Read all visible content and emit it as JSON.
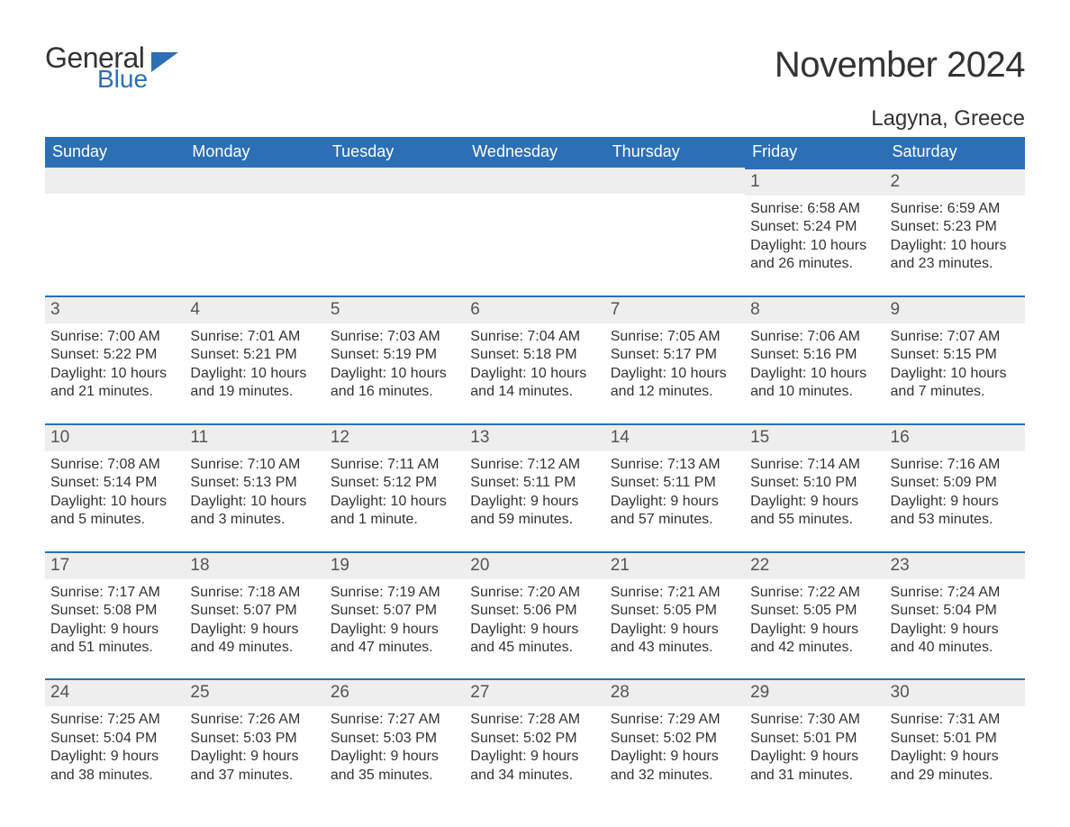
{
  "brand": {
    "word1": "General",
    "word2": "Blue",
    "icon_color": "#2c6fb5"
  },
  "title": "November 2024",
  "location": "Lagyna, Greece",
  "colors": {
    "header_bg": "#2c6fb5",
    "header_text": "#ffffff",
    "band_bg": "#eeeeee",
    "band_border": "#2c6fb5",
    "text": "#333333"
  },
  "fonts": {
    "title_pt": 40,
    "location_pt": 24,
    "dayhead_pt": 18,
    "daynum_pt": 19,
    "body_pt": 16
  },
  "day_names": [
    "Sunday",
    "Monday",
    "Tuesday",
    "Wednesday",
    "Thursday",
    "Friday",
    "Saturday"
  ],
  "weeks": [
    [
      null,
      null,
      null,
      null,
      null,
      {
        "n": "1",
        "sunrise": "Sunrise: 6:58 AM",
        "sunset": "Sunset: 5:24 PM",
        "d1": "Daylight: 10 hours",
        "d2": "and 26 minutes."
      },
      {
        "n": "2",
        "sunrise": "Sunrise: 6:59 AM",
        "sunset": "Sunset: 5:23 PM",
        "d1": "Daylight: 10 hours",
        "d2": "and 23 minutes."
      }
    ],
    [
      {
        "n": "3",
        "sunrise": "Sunrise: 7:00 AM",
        "sunset": "Sunset: 5:22 PM",
        "d1": "Daylight: 10 hours",
        "d2": "and 21 minutes."
      },
      {
        "n": "4",
        "sunrise": "Sunrise: 7:01 AM",
        "sunset": "Sunset: 5:21 PM",
        "d1": "Daylight: 10 hours",
        "d2": "and 19 minutes."
      },
      {
        "n": "5",
        "sunrise": "Sunrise: 7:03 AM",
        "sunset": "Sunset: 5:19 PM",
        "d1": "Daylight: 10 hours",
        "d2": "and 16 minutes."
      },
      {
        "n": "6",
        "sunrise": "Sunrise: 7:04 AM",
        "sunset": "Sunset: 5:18 PM",
        "d1": "Daylight: 10 hours",
        "d2": "and 14 minutes."
      },
      {
        "n": "7",
        "sunrise": "Sunrise: 7:05 AM",
        "sunset": "Sunset: 5:17 PM",
        "d1": "Daylight: 10 hours",
        "d2": "and 12 minutes."
      },
      {
        "n": "8",
        "sunrise": "Sunrise: 7:06 AM",
        "sunset": "Sunset: 5:16 PM",
        "d1": "Daylight: 10 hours",
        "d2": "and 10 minutes."
      },
      {
        "n": "9",
        "sunrise": "Sunrise: 7:07 AM",
        "sunset": "Sunset: 5:15 PM",
        "d1": "Daylight: 10 hours",
        "d2": "and 7 minutes."
      }
    ],
    [
      {
        "n": "10",
        "sunrise": "Sunrise: 7:08 AM",
        "sunset": "Sunset: 5:14 PM",
        "d1": "Daylight: 10 hours",
        "d2": "and 5 minutes."
      },
      {
        "n": "11",
        "sunrise": "Sunrise: 7:10 AM",
        "sunset": "Sunset: 5:13 PM",
        "d1": "Daylight: 10 hours",
        "d2": "and 3 minutes."
      },
      {
        "n": "12",
        "sunrise": "Sunrise: 7:11 AM",
        "sunset": "Sunset: 5:12 PM",
        "d1": "Daylight: 10 hours",
        "d2": "and 1 minute."
      },
      {
        "n": "13",
        "sunrise": "Sunrise: 7:12 AM",
        "sunset": "Sunset: 5:11 PM",
        "d1": "Daylight: 9 hours",
        "d2": "and 59 minutes."
      },
      {
        "n": "14",
        "sunrise": "Sunrise: 7:13 AM",
        "sunset": "Sunset: 5:11 PM",
        "d1": "Daylight: 9 hours",
        "d2": "and 57 minutes."
      },
      {
        "n": "15",
        "sunrise": "Sunrise: 7:14 AM",
        "sunset": "Sunset: 5:10 PM",
        "d1": "Daylight: 9 hours",
        "d2": "and 55 minutes."
      },
      {
        "n": "16",
        "sunrise": "Sunrise: 7:16 AM",
        "sunset": "Sunset: 5:09 PM",
        "d1": "Daylight: 9 hours",
        "d2": "and 53 minutes."
      }
    ],
    [
      {
        "n": "17",
        "sunrise": "Sunrise: 7:17 AM",
        "sunset": "Sunset: 5:08 PM",
        "d1": "Daylight: 9 hours",
        "d2": "and 51 minutes."
      },
      {
        "n": "18",
        "sunrise": "Sunrise: 7:18 AM",
        "sunset": "Sunset: 5:07 PM",
        "d1": "Daylight: 9 hours",
        "d2": "and 49 minutes."
      },
      {
        "n": "19",
        "sunrise": "Sunrise: 7:19 AM",
        "sunset": "Sunset: 5:07 PM",
        "d1": "Daylight: 9 hours",
        "d2": "and 47 minutes."
      },
      {
        "n": "20",
        "sunrise": "Sunrise: 7:20 AM",
        "sunset": "Sunset: 5:06 PM",
        "d1": "Daylight: 9 hours",
        "d2": "and 45 minutes."
      },
      {
        "n": "21",
        "sunrise": "Sunrise: 7:21 AM",
        "sunset": "Sunset: 5:05 PM",
        "d1": "Daylight: 9 hours",
        "d2": "and 43 minutes."
      },
      {
        "n": "22",
        "sunrise": "Sunrise: 7:22 AM",
        "sunset": "Sunset: 5:05 PM",
        "d1": "Daylight: 9 hours",
        "d2": "and 42 minutes."
      },
      {
        "n": "23",
        "sunrise": "Sunrise: 7:24 AM",
        "sunset": "Sunset: 5:04 PM",
        "d1": "Daylight: 9 hours",
        "d2": "and 40 minutes."
      }
    ],
    [
      {
        "n": "24",
        "sunrise": "Sunrise: 7:25 AM",
        "sunset": "Sunset: 5:04 PM",
        "d1": "Daylight: 9 hours",
        "d2": "and 38 minutes."
      },
      {
        "n": "25",
        "sunrise": "Sunrise: 7:26 AM",
        "sunset": "Sunset: 5:03 PM",
        "d1": "Daylight: 9 hours",
        "d2": "and 37 minutes."
      },
      {
        "n": "26",
        "sunrise": "Sunrise: 7:27 AM",
        "sunset": "Sunset: 5:03 PM",
        "d1": "Daylight: 9 hours",
        "d2": "and 35 minutes."
      },
      {
        "n": "27",
        "sunrise": "Sunrise: 7:28 AM",
        "sunset": "Sunset: 5:02 PM",
        "d1": "Daylight: 9 hours",
        "d2": "and 34 minutes."
      },
      {
        "n": "28",
        "sunrise": "Sunrise: 7:29 AM",
        "sunset": "Sunset: 5:02 PM",
        "d1": "Daylight: 9 hours",
        "d2": "and 32 minutes."
      },
      {
        "n": "29",
        "sunrise": "Sunrise: 7:30 AM",
        "sunset": "Sunset: 5:01 PM",
        "d1": "Daylight: 9 hours",
        "d2": "and 31 minutes."
      },
      {
        "n": "30",
        "sunrise": "Sunrise: 7:31 AM",
        "sunset": "Sunset: 5:01 PM",
        "d1": "Daylight: 9 hours",
        "d2": "and 29 minutes."
      }
    ]
  ]
}
